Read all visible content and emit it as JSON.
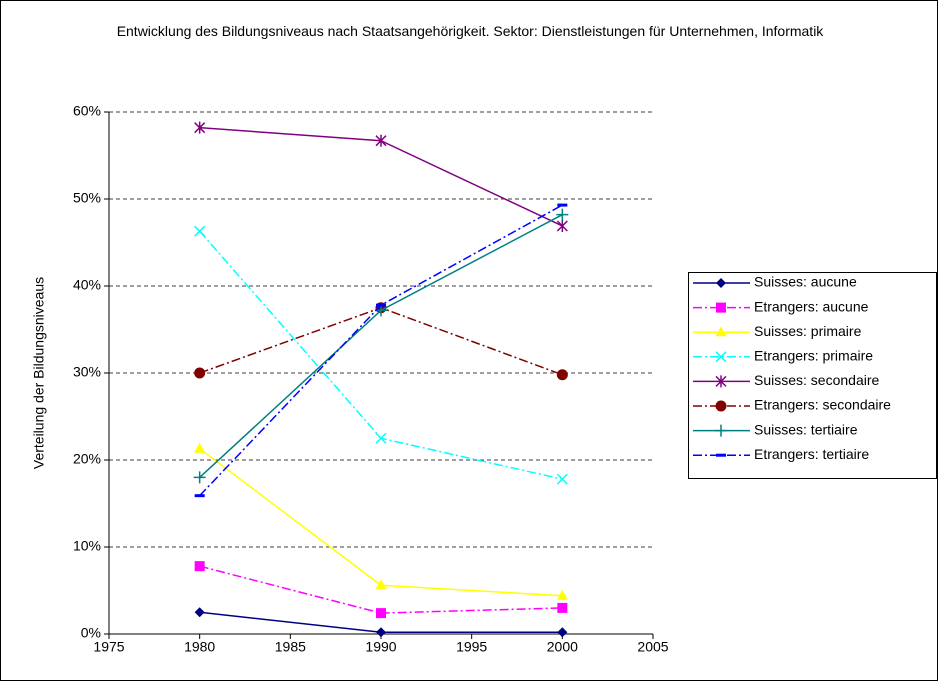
{
  "chart_data": {
    "type": "line",
    "title": "Entwicklung des Bildungsniveaus nach Staatsangehörigkeit. Sektor: Dienstleistungen für Unternehmen, Informatik",
    "y_label": "Verteilung der Bildungsniveaus",
    "x": [
      1980,
      1990,
      2000
    ],
    "xlim": [
      1975,
      2005
    ],
    "xticks": [
      1975,
      1980,
      1985,
      1990,
      1995,
      2000,
      2005
    ],
    "ylim": [
      0,
      60
    ],
    "yticks": [
      {
        "value": 0,
        "label": "0%"
      },
      {
        "value": 10,
        "label": "10%"
      },
      {
        "value": 20,
        "label": "20%"
      },
      {
        "value": 30,
        "label": "30%"
      },
      {
        "value": 40,
        "label": "40%"
      },
      {
        "value": 50,
        "label": "50%"
      },
      {
        "value": 60,
        "label": "60%"
      }
    ],
    "grid": true,
    "legend": "right",
    "series": [
      {
        "name": "Suisses: aucune",
        "color": "#000080",
        "marker": "diamond",
        "line_style": "solid",
        "values": [
          2.5,
          0.2,
          0.2
        ]
      },
      {
        "name": "Etrangers: aucune",
        "color": "#ff00ff",
        "marker": "square",
        "line_style": "dashdot",
        "values": [
          7.8,
          2.4,
          3.0
        ]
      },
      {
        "name": "Suisses: primaire",
        "color": "#ffff00",
        "marker": "triangle",
        "line_style": "solid",
        "values": [
          21.3,
          5.6,
          4.4
        ]
      },
      {
        "name": "Etrangers: primaire",
        "color": "#00ffff",
        "marker": "x",
        "line_style": "dashdot",
        "values": [
          46.3,
          22.5,
          17.8
        ]
      },
      {
        "name": "Suisses: secondaire",
        "color": "#800080",
        "marker": "asterisk",
        "line_style": "solid",
        "values": [
          58.2,
          56.7,
          46.9
        ]
      },
      {
        "name": "Etrangers: secondaire",
        "color": "#800000",
        "marker": "circle",
        "line_style": "dashdot",
        "values": [
          30.0,
          37.5,
          29.8
        ]
      },
      {
        "name": "Suisses: tertiaire",
        "color": "#008080",
        "marker": "plus",
        "line_style": "solid",
        "values": [
          18.0,
          37.2,
          48.2
        ]
      },
      {
        "name": "Etrangers: tertiaire",
        "color": "#0000ff",
        "marker": "dash",
        "line_style": "dashdot",
        "values": [
          15.9,
          37.8,
          49.3
        ]
      }
    ]
  }
}
